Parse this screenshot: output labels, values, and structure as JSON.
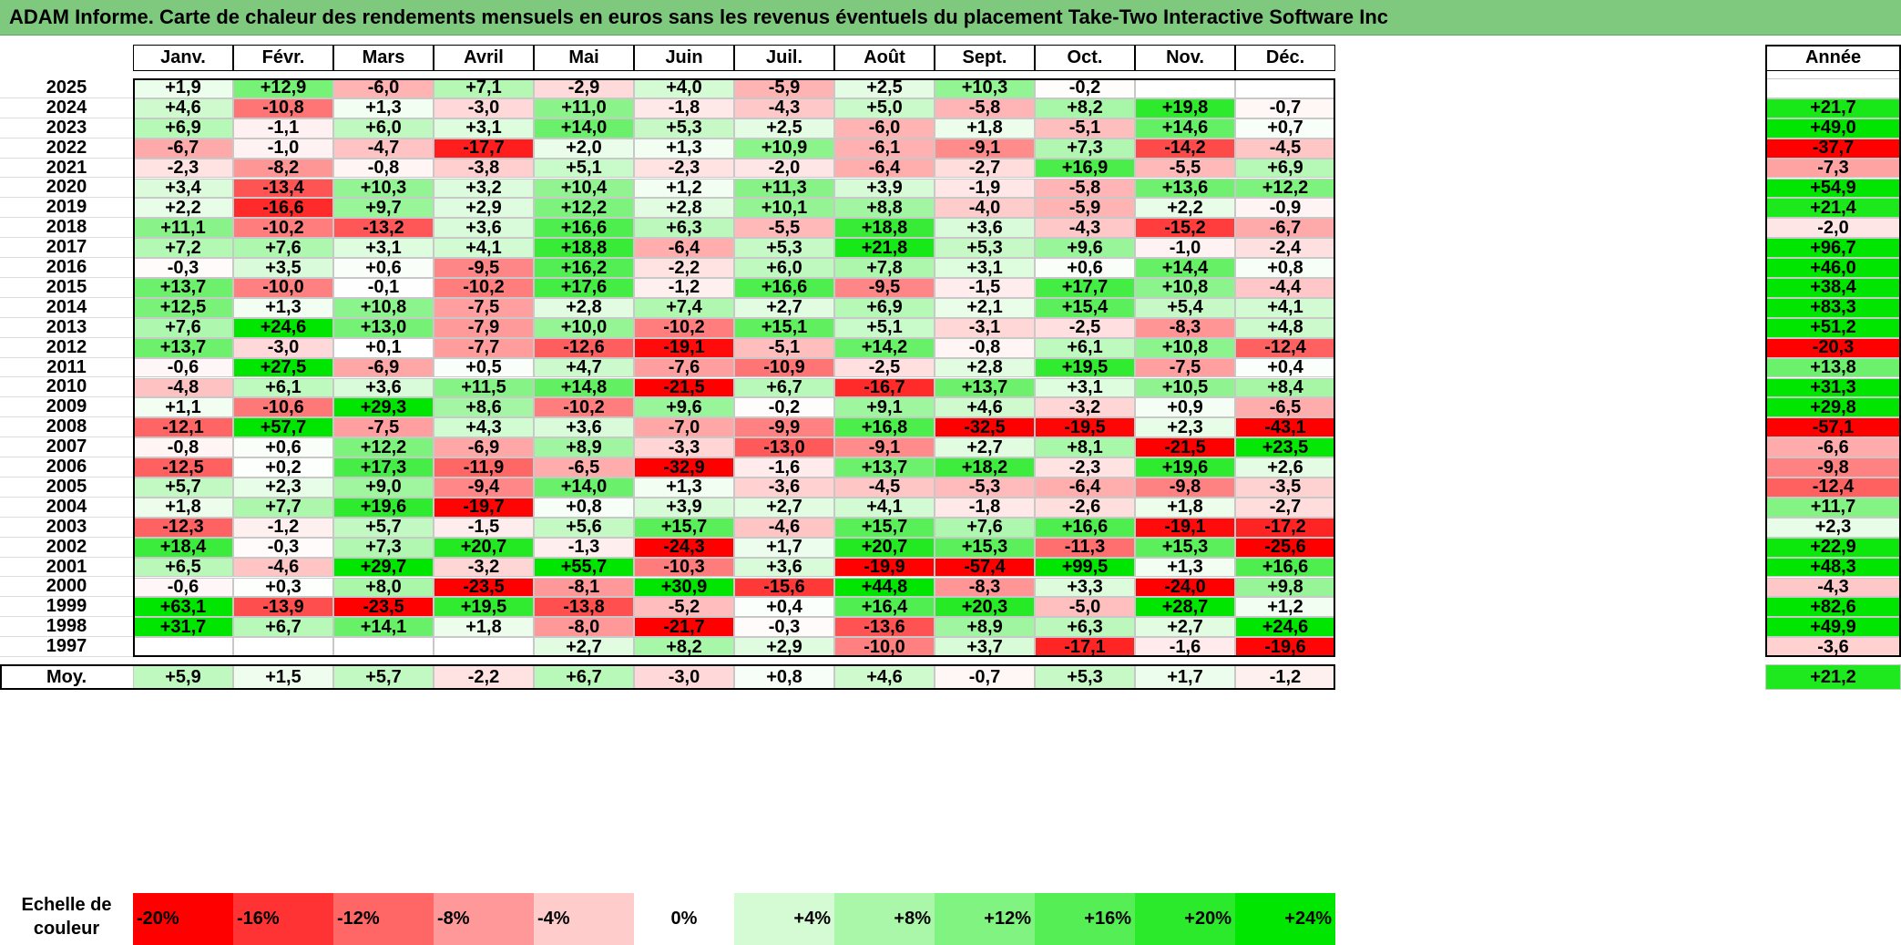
{
  "title": "ADAM Informe. Carte de chaleur des rendements mensuels en euros sans les revenus éventuels du placement Take-Two Interactive Software Inc",
  "months": [
    "Janv.",
    "Févr.",
    "Mars",
    "Avril",
    "Mai",
    "Juin",
    "Juil.",
    "Août",
    "Sept.",
    "Oct.",
    "Nov.",
    "Déc."
  ],
  "year_header": "Année",
  "average_label": "Moy.",
  "legend_label": "Echelle de couleur",
  "colors": {
    "negative": "#ff0000",
    "zero": "#ffffff",
    "positive": "#00e600",
    "title_bar": "#7fc97f"
  },
  "chart_data": {
    "type": "heatmap",
    "title": "ADAM Informe. Carte de chaleur des rendements mensuels en euros sans les revenus éventuels du placement Take-Two Interactive Software Inc",
    "x_categories": [
      "Janv.",
      "Févr.",
      "Mars",
      "Avril",
      "Mai",
      "Juin",
      "Juil.",
      "Août",
      "Sept.",
      "Oct.",
      "Nov.",
      "Déc."
    ],
    "rows": [
      {
        "year": "2025",
        "values": [
          "+1,9",
          "+12,9",
          "-6,0",
          "+7,1",
          "-2,9",
          "+4,0",
          "-5,9",
          "+2,5",
          "+10,3",
          "-0,2",
          "",
          ""
        ],
        "annual": ""
      },
      {
        "year": "2024",
        "values": [
          "+4,6",
          "-10,8",
          "+1,3",
          "-3,0",
          "+11,0",
          "-1,8",
          "-4,3",
          "+5,0",
          "-5,8",
          "+8,2",
          "+19,8",
          "-0,7"
        ],
        "annual": "+21,7"
      },
      {
        "year": "2023",
        "values": [
          "+6,9",
          "-1,1",
          "+6,0",
          "+3,1",
          "+14,0",
          "+5,3",
          "+2,5",
          "-6,0",
          "+1,8",
          "-5,1",
          "+14,6",
          "+0,7"
        ],
        "annual": "+49,0"
      },
      {
        "year": "2022",
        "values": [
          "-6,7",
          "-1,0",
          "-4,7",
          "-17,7",
          "+2,0",
          "+1,3",
          "+10,9",
          "-6,1",
          "-9,1",
          "+7,3",
          "-14,2",
          "-4,5"
        ],
        "annual": "-37,7"
      },
      {
        "year": "2021",
        "values": [
          "-2,3",
          "-8,2",
          "-0,8",
          "-3,8",
          "+5,1",
          "-2,3",
          "-2,0",
          "-6,4",
          "-2,7",
          "+16,9",
          "-5,5",
          "+6,9"
        ],
        "annual": "-7,3"
      },
      {
        "year": "2020",
        "values": [
          "+3,4",
          "-13,4",
          "+10,3",
          "+3,2",
          "+10,4",
          "+1,2",
          "+11,3",
          "+3,9",
          "-1,9",
          "-5,8",
          "+13,6",
          "+12,2"
        ],
        "annual": "+54,9"
      },
      {
        "year": "2019",
        "values": [
          "+2,2",
          "-16,6",
          "+9,7",
          "+2,9",
          "+12,2",
          "+2,8",
          "+10,1",
          "+8,8",
          "-4,0",
          "-5,9",
          "+2,2",
          "-0,9"
        ],
        "annual": "+21,4"
      },
      {
        "year": "2018",
        "values": [
          "+11,1",
          "-10,2",
          "-13,2",
          "+3,6",
          "+16,6",
          "+6,3",
          "-5,5",
          "+18,8",
          "+3,6",
          "-4,3",
          "-15,2",
          "-6,7"
        ],
        "annual": "-2,0"
      },
      {
        "year": "2017",
        "values": [
          "+7,2",
          "+7,6",
          "+3,1",
          "+4,1",
          "+18,8",
          "-6,4",
          "+5,3",
          "+21,8",
          "+5,3",
          "+9,6",
          "-1,0",
          "-2,4"
        ],
        "annual": "+96,7"
      },
      {
        "year": "2016",
        "values": [
          "-0,3",
          "+3,5",
          "+0,6",
          "-9,5",
          "+16,2",
          "-2,2",
          "+6,0",
          "+7,8",
          "+3,1",
          "+0,6",
          "+14,4",
          "+0,8"
        ],
        "annual": "+46,0"
      },
      {
        "year": "2015",
        "values": [
          "+13,7",
          "-10,0",
          "-0,1",
          "-10,2",
          "+17,6",
          "-1,2",
          "+16,6",
          "-9,5",
          "-1,5",
          "+17,7",
          "+10,8",
          "-4,4"
        ],
        "annual": "+38,4"
      },
      {
        "year": "2014",
        "values": [
          "+12,5",
          "+1,3",
          "+10,8",
          "-7,5",
          "+2,8",
          "+7,4",
          "+2,7",
          "+6,9",
          "+2,1",
          "+15,4",
          "+5,4",
          "+4,1"
        ],
        "annual": "+83,3"
      },
      {
        "year": "2013",
        "values": [
          "+7,6",
          "+24,6",
          "+13,0",
          "-7,9",
          "+10,0",
          "-10,2",
          "+15,1",
          "+5,1",
          "-3,1",
          "-2,5",
          "-8,3",
          "+4,8"
        ],
        "annual": "+51,2"
      },
      {
        "year": "2012",
        "values": [
          "+13,7",
          "-3,0",
          "+0,1",
          "-7,7",
          "-12,6",
          "-19,1",
          "-5,1",
          "+14,2",
          "-0,8",
          "+6,1",
          "+10,8",
          "-12,4"
        ],
        "annual": "-20,3"
      },
      {
        "year": "2011",
        "values": [
          "-0,6",
          "+27,5",
          "-6,9",
          "+0,5",
          "+4,7",
          "-7,6",
          "-10,9",
          "-2,5",
          "+2,8",
          "+19,5",
          "-7,5",
          "+0,4"
        ],
        "annual": "+13,8"
      },
      {
        "year": "2010",
        "values": [
          "-4,8",
          "+6,1",
          "+3,6",
          "+11,5",
          "+14,8",
          "-21,5",
          "+6,7",
          "-16,7",
          "+13,7",
          "+3,1",
          "+10,5",
          "+8,4"
        ],
        "annual": "+31,3"
      },
      {
        "year": "2009",
        "values": [
          "+1,1",
          "-10,6",
          "+29,3",
          "+8,6",
          "-10,2",
          "+9,6",
          "-0,2",
          "+9,1",
          "+4,6",
          "-3,2",
          "+0,9",
          "-6,5"
        ],
        "annual": "+29,8"
      },
      {
        "year": "2008",
        "values": [
          "-12,1",
          "+57,7",
          "-7,5",
          "+4,3",
          "+3,6",
          "-7,0",
          "-9,9",
          "+16,8",
          "-32,5",
          "-19,5",
          "+2,3",
          "-43,1"
        ],
        "annual": "-57,1"
      },
      {
        "year": "2007",
        "values": [
          "-0,8",
          "+0,6",
          "+12,2",
          "-6,9",
          "+8,9",
          "-3,3",
          "-13,0",
          "-9,1",
          "+2,7",
          "+8,1",
          "-21,5",
          "+23,5"
        ],
        "annual": "-6,6"
      },
      {
        "year": "2006",
        "values": [
          "-12,5",
          "+0,2",
          "+17,3",
          "-11,9",
          "-6,5",
          "-32,9",
          "-1,6",
          "+13,7",
          "+18,2",
          "-2,3",
          "+19,6",
          "+2,6"
        ],
        "annual": "-9,8"
      },
      {
        "year": "2005",
        "values": [
          "+5,7",
          "+2,3",
          "+9,0",
          "-9,4",
          "+14,0",
          "+1,3",
          "-3,6",
          "-4,5",
          "-5,3",
          "-6,4",
          "-9,8",
          "-3,5"
        ],
        "annual": "-12,4"
      },
      {
        "year": "2004",
        "values": [
          "+1,8",
          "+7,7",
          "+19,6",
          "-19,7",
          "+0,8",
          "+3,9",
          "+2,7",
          "+4,1",
          "-1,8",
          "-2,6",
          "+1,8",
          "-2,7"
        ],
        "annual": "+11,7"
      },
      {
        "year": "2003",
        "values": [
          "-12,3",
          "-1,2",
          "+5,7",
          "-1,5",
          "+5,6",
          "+15,7",
          "-4,6",
          "+15,7",
          "+7,6",
          "+16,6",
          "-19,1",
          "-17,2"
        ],
        "annual": "+2,3"
      },
      {
        "year": "2002",
        "values": [
          "+18,4",
          "-0,3",
          "+7,3",
          "+20,7",
          "-1,3",
          "-24,3",
          "+1,7",
          "+20,7",
          "+15,3",
          "-11,3",
          "+15,3",
          "-25,6"
        ],
        "annual": "+22,9"
      },
      {
        "year": "2001",
        "values": [
          "+6,5",
          "-4,6",
          "+29,7",
          "-3,2",
          "+55,7",
          "-10,3",
          "+3,6",
          "-19,9",
          "-57,4",
          "+99,5",
          "+1,3",
          "+16,6"
        ],
        "annual": "+48,3"
      },
      {
        "year": "2000",
        "values": [
          "-0,6",
          "+0,3",
          "+8,0",
          "-23,5",
          "-8,1",
          "+30,9",
          "-15,6",
          "+44,8",
          "-8,3",
          "+3,3",
          "-24,0",
          "+9,8"
        ],
        "annual": "-4,3"
      },
      {
        "year": "1999",
        "values": [
          "+63,1",
          "-13,9",
          "-23,5",
          "+19,5",
          "-13,8",
          "-5,2",
          "+0,4",
          "+16,4",
          "+20,3",
          "-5,0",
          "+28,7",
          "+1,2"
        ],
        "annual": "+82,6"
      },
      {
        "year": "1998",
        "values": [
          "+31,7",
          "+6,7",
          "+14,1",
          "+1,8",
          "-8,0",
          "-21,7",
          "-0,3",
          "-13,6",
          "+8,9",
          "+6,3",
          "+2,7",
          "+24,6"
        ],
        "annual": "+49,9"
      },
      {
        "year": "1997",
        "values": [
          "",
          "",
          "",
          "",
          "+2,7",
          "+8,2",
          "+2,9",
          "-10,0",
          "+3,7",
          "-17,1",
          "-1,6",
          "-19,6"
        ],
        "annual": "-3,6"
      }
    ],
    "averages": [
      "+5,9",
      "+1,5",
      "+5,7",
      "-2,2",
      "+6,7",
      "-3,0",
      "+0,8",
      "+4,6",
      "-0,7",
      "+5,3",
      "+1,7",
      "-1,2"
    ],
    "annual_average": "+21,2",
    "color_scale": [
      "-20%",
      "-16%",
      "-12%",
      "-8%",
      "-4%",
      "0%",
      "+4%",
      "+8%",
      "+12%",
      "+16%",
      "+20%",
      "+24%"
    ],
    "color_scale_values": [
      -20,
      -16,
      -12,
      -8,
      -4,
      0,
      4,
      8,
      12,
      16,
      20,
      24
    ]
  }
}
